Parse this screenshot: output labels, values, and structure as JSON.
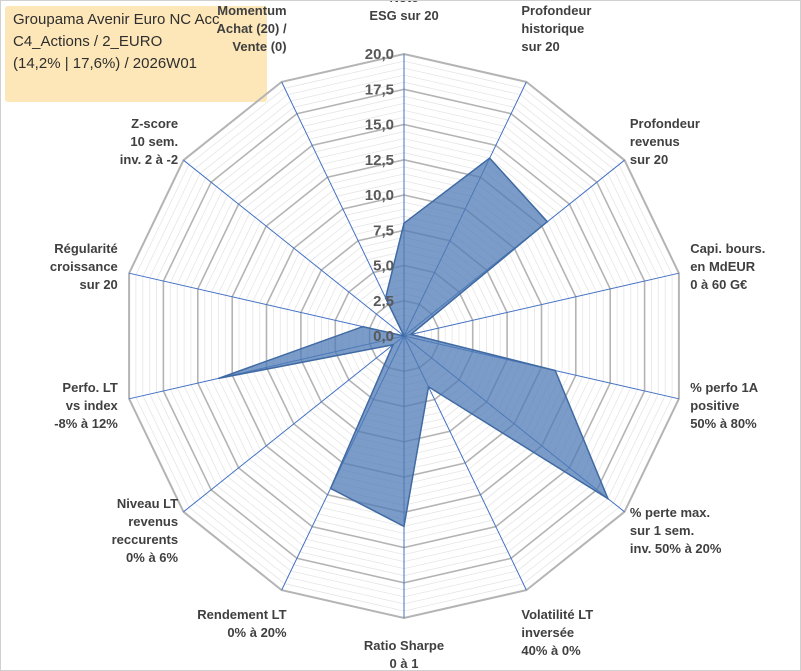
{
  "title": {
    "line1": "Groupama Avenir Euro NC Acc",
    "line2": "C4_Actions / 2_EURO",
    "line3": "(14,2% | 17,6%) / 2026W01"
  },
  "chart_data": {
    "type": "radar",
    "rmin": 0,
    "rmax": 20,
    "ticks": [
      "0,0",
      "2,5",
      "5,0",
      "7,5",
      "10,0",
      "12,5",
      "15,0",
      "17,5",
      "20,0"
    ],
    "categories": [
      [
        "Note",
        "ESG sur 20"
      ],
      [
        "Profondeur",
        "historique",
        "sur 20"
      ],
      [
        "Profondeur",
        "revenus",
        "sur 20"
      ],
      [
        "Capi. bours.",
        "en MdEUR",
        "0 à 60 G€"
      ],
      [
        "% perfo 1A",
        "positive",
        "50% à 80%"
      ],
      [
        "% perte max.",
        "sur 1 sem.",
        "inv. 50% à 20%"
      ],
      [
        "Volatilité LT",
        "inversée",
        "40% à 0%"
      ],
      [
        "Ratio Sharpe",
        "0 à 1"
      ],
      [
        "Rendement LT",
        "0% à 20%"
      ],
      [
        "Niveau LT",
        "revenus",
        "reccurents",
        "0% à 6%"
      ],
      [
        "Perfo. LT",
        "vs index",
        "-8% à 12%"
      ],
      [
        "Régularité",
        "croissance",
        "sur 20"
      ],
      [
        "Z-score",
        "10 sem.",
        "inv. 2 à -2"
      ],
      [
        "Momentum",
        "Achat (20) /",
        "Vente (0)"
      ]
    ],
    "values": [
      8,
      14,
      13,
      0.5,
      11,
      18.5,
      4,
      13.5,
      12,
      1,
      13.5,
      3,
      0,
      3
    ],
    "fill_color": "#4f7bb5",
    "fill_opacity": 0.75,
    "edge_color": "#3f6aa3",
    "grid_color": "#c8c8c8",
    "spoke_color": "#4472c4",
    "grid": true,
    "legend": "none"
  }
}
